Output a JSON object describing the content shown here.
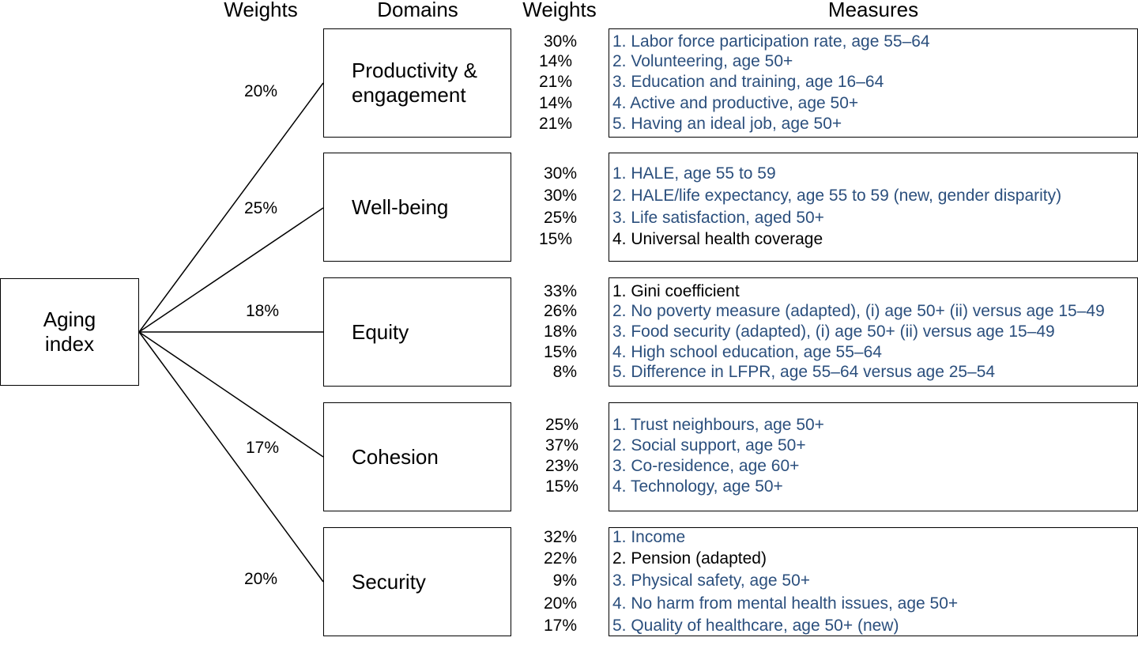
{
  "headers": {
    "weights_left": "Weights",
    "domains": "Domains",
    "weights_right": "Weights",
    "measures": "Measures"
  },
  "root": {
    "label_line1": "Aging",
    "label_line2": "index"
  },
  "domains": [
    {
      "weight": "20%",
      "name_line1": "Productivity &",
      "name_line2": "engagement",
      "measures": [
        {
          "weight": "30%",
          "text": "1. Labor force participation rate, age 55–64",
          "color": "#2b4f7d"
        },
        {
          "weight": "14%",
          "text": "2. Volunteering, age 50+",
          "color": "#2b4f7d"
        },
        {
          "weight": "21%",
          "text": "3. Education and training, age 16–64",
          "color": "#2b4f7d"
        },
        {
          "weight": "14%",
          "text": "4. Active and productive, age 50+",
          "color": "#2b4f7d"
        },
        {
          "weight": "21%",
          "text": "5. Having an ideal job, age 50+",
          "color": "#2b4f7d"
        }
      ]
    },
    {
      "weight": "25%",
      "name_line1": "Well-being",
      "name_line2": "",
      "measures": [
        {
          "weight": "30%",
          "text": "1. HALE, age 55 to 59",
          "color": "#2b4f7d"
        },
        {
          "weight": "30%",
          "text": "2. HALE/life expectancy, age 55 to 59 (new, gender disparity)",
          "color": "#2b4f7d"
        },
        {
          "weight": "25%",
          "text": "3. Life satisfaction, aged 50+",
          "color": "#2b4f7d"
        },
        {
          "weight": "15%",
          "text": "4. Universal health coverage",
          "color": "#000000"
        }
      ]
    },
    {
      "weight": "18%",
      "name_line1": "Equity",
      "name_line2": "",
      "measures": [
        {
          "weight": "33%",
          "text": "1. Gini coefficient",
          "color": "#000000"
        },
        {
          "weight": "26%",
          "text": "2. No poverty measure (adapted), (i) age 50+ (ii) versus age 15–49",
          "color": "#2b4f7d"
        },
        {
          "weight": "18%",
          "text": "3. Food security (adapted), (i) age 50+ (ii) versus age 15–49",
          "color": "#2b4f7d"
        },
        {
          "weight": "15%",
          "text": "4. High school education, age 55–64",
          "color": "#2b4f7d"
        },
        {
          "weight": "8%",
          "text": "5. Difference in LFPR, age 55–64 versus age 25–54",
          "color": "#2b4f7d"
        }
      ]
    },
    {
      "weight": "17%",
      "name_line1": "Cohesion",
      "name_line2": "",
      "measures": [
        {
          "weight": "25%",
          "text": "1. Trust neighbours, age 50+",
          "color": "#2b4f7d"
        },
        {
          "weight": "37%",
          "text": "2. Social support, age 50+",
          "color": "#2b4f7d"
        },
        {
          "weight": "23%",
          "text": "3. Co-residence, age 60+",
          "color": "#2b4f7d"
        },
        {
          "weight": "15%",
          "text": "4. Technology, age 50+",
          "color": "#2b4f7d"
        }
      ]
    },
    {
      "weight": "20%",
      "name_line1": "Security",
      "name_line2": "",
      "measures": [
        {
          "weight": "32%",
          "text": "1. Income",
          "color": "#2b4f7d"
        },
        {
          "weight": "22%",
          "text": "2. Pension (adapted)",
          "color": "#000000"
        },
        {
          "weight": "9%",
          "text": "3. Physical safety, age 50+",
          "color": "#2b4f7d"
        },
        {
          "weight": "20%",
          "text": "4. No harm from mental health issues, age 50+",
          "color": "#2b4f7d"
        },
        {
          "weight": "17%",
          "text": "5. Quality of healthcare, age 50+ (new)",
          "color": "#2b4f7d"
        }
      ]
    }
  ]
}
